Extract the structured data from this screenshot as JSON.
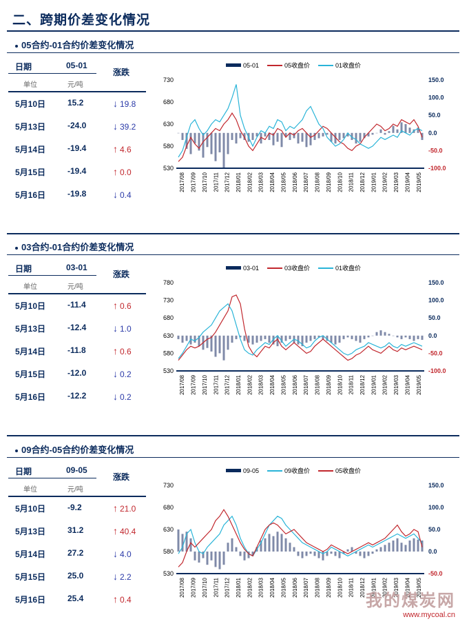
{
  "page_title": "二、跨期价差变化情况",
  "sections": [
    {
      "title": "05合约-01合约价差变化情况",
      "header": {
        "date": "日期",
        "spread": "05-01",
        "change": "涨跌",
        "unit_label": "单位",
        "unit": "元/吨"
      },
      "rows": [
        {
          "date": "5月10日",
          "value": "15.2",
          "dir": "down",
          "change": "19.8"
        },
        {
          "date": "5月13日",
          "value": "-24.0",
          "dir": "down",
          "change": "39.2"
        },
        {
          "date": "5月14日",
          "value": "-19.4",
          "dir": "up",
          "change": "4.6"
        },
        {
          "date": "5月15日",
          "value": "-19.4",
          "dir": "up",
          "change": "0.0"
        },
        {
          "date": "5月16日",
          "value": "-19.8",
          "dir": "down",
          "change": "0.4"
        }
      ]
    },
    {
      "title": "03合约-01合约价差变化情况",
      "header": {
        "date": "日期",
        "spread": "03-01",
        "change": "涨跌",
        "unit_label": "单位",
        "unit": "元/吨"
      },
      "rows": [
        {
          "date": "5月10日",
          "value": "-11.4",
          "dir": "up",
          "change": "0.6"
        },
        {
          "date": "5月13日",
          "value": "-12.4",
          "dir": "down",
          "change": "1.0"
        },
        {
          "date": "5月14日",
          "value": "-11.8",
          "dir": "up",
          "change": "0.6"
        },
        {
          "date": "5月15日",
          "value": "-12.0",
          "dir": "down",
          "change": "0.2"
        },
        {
          "date": "5月16日",
          "value": "-12.2",
          "dir": "down",
          "change": "0.2"
        }
      ]
    },
    {
      "title": "09合约-05合约价差变化情况",
      "header": {
        "date": "日期",
        "spread": "09-05",
        "change": "涨跌",
        "unit_label": "单位",
        "unit": "元/吨"
      },
      "rows": [
        {
          "date": "5月10日",
          "value": "-9.2",
          "dir": "up",
          "change": "21.0"
        },
        {
          "date": "5月13日",
          "value": "31.2",
          "dir": "up",
          "change": "40.4"
        },
        {
          "date": "5月14日",
          "value": "27.2",
          "dir": "down",
          "change": "4.0"
        },
        {
          "date": "5月15日",
          "value": "25.0",
          "dir": "down",
          "change": "2.2"
        },
        {
          "date": "5月16日",
          "value": "25.4",
          "dir": "up",
          "change": "0.4"
        }
      ]
    }
  ],
  "arrows": {
    "up": "↑",
    "down": "↓"
  },
  "colors": {
    "navy": "#0a2a5c",
    "red": "#c1272d",
    "cyan": "#29b4d8",
    "bar": "#7f8aa8",
    "down_text": "#2b3aa8"
  },
  "chart_data": [
    {
      "type": "bar+line",
      "legend": [
        "05-01",
        "05收盘价",
        "01收盘价"
      ],
      "x_ticks": [
        "2017/08",
        "2017/09",
        "2017/10",
        "2017/11",
        "2017/12",
        "2018/01",
        "2018/02",
        "2018/03",
        "2018/04",
        "2018/05",
        "2018/06",
        "2018/07",
        "2018/08",
        "2018/09",
        "2018/10",
        "2018/11",
        "2018/12",
        "2019/01",
        "2019/02",
        "2019/03",
        "2019/04",
        "2019/05"
      ],
      "left_ticks": [
        "730",
        "680",
        "630",
        "580",
        "530"
      ],
      "right_ticks": [
        "150.0",
        "100.0",
        "50.0",
        "0.0",
        "-50.0",
        "-100.0"
      ],
      "ylim_left": [
        530,
        730
      ],
      "ylim_right": [
        -100,
        150
      ],
      "series": [
        {
          "name": "05-01",
          "kind": "bar",
          "values": [
            0,
            -20,
            -45,
            -60,
            -30,
            -50,
            -70,
            -40,
            -60,
            -80,
            -55,
            -100,
            -60,
            -20,
            -30,
            -15,
            -20,
            -25,
            -20,
            -10,
            -30,
            -10,
            -20,
            -35,
            -25,
            -40,
            -10,
            -20,
            -15,
            -30,
            -25,
            -40,
            -35,
            -20,
            -15,
            -10,
            -5,
            -25,
            -30,
            -20,
            -15,
            -10,
            -20,
            -30,
            -25,
            -15,
            -10,
            -5,
            0,
            10,
            -5,
            5,
            20,
            10,
            30,
            25,
            15,
            10,
            15,
            -20
          ]
        },
        {
          "name": "05收盘价",
          "kind": "line",
          "values": [
            545,
            555,
            580,
            600,
            585,
            575,
            590,
            600,
            610,
            620,
            615,
            630,
            640,
            655,
            640,
            615,
            600,
            580,
            570,
            585,
            600,
            595,
            610,
            605,
            620,
            615,
            600,
            610,
            605,
            615,
            620,
            610,
            600,
            605,
            615,
            625,
            620,
            610,
            600,
            590,
            585,
            575,
            570,
            580,
            585,
            600,
            610,
            620,
            630,
            625,
            615,
            620,
            630,
            625,
            640,
            635,
            630,
            640,
            625,
            600
          ]
        },
        {
          "name": "01收盘价",
          "kind": "line",
          "values": [
            555,
            570,
            600,
            630,
            640,
            620,
            605,
            615,
            630,
            640,
            635,
            650,
            665,
            690,
            720,
            650,
            620,
            600,
            580,
            600,
            615,
            610,
            625,
            620,
            640,
            635,
            615,
            625,
            620,
            630,
            640,
            660,
            670,
            650,
            630,
            620,
            600,
            590,
            580,
            585,
            595,
            610,
            600,
            595,
            585,
            580,
            575,
            580,
            590,
            600,
            595,
            600,
            605,
            600,
            615,
            610,
            605,
            615,
            620,
            615
          ]
        }
      ]
    },
    {
      "type": "bar+line",
      "legend": [
        "03-01",
        "03收盘价",
        "01收盘价"
      ],
      "x_ticks": [
        "2017/08",
        "2017/09",
        "2017/10",
        "2017/11",
        "2017/12",
        "2018/01",
        "2018/02",
        "2018/03",
        "2018/04",
        "2018/05",
        "2018/06",
        "2018/07",
        "2018/08",
        "2018/09",
        "2018/10",
        "2018/11",
        "2018/12",
        "2019/01",
        "2019/02",
        "2019/03",
        "2019/04",
        "2019/05"
      ],
      "left_ticks": [
        "780",
        "730",
        "680",
        "630",
        "580",
        "530"
      ],
      "right_ticks": [
        "150.0",
        "100.0",
        "50.0",
        "0.0",
        "-50.0",
        "-100.0"
      ],
      "ylim_left": [
        530,
        780
      ],
      "ylim_right": [
        -100,
        150
      ],
      "series": [
        {
          "name": "03-01",
          "kind": "bar",
          "values": [
            -10,
            -20,
            -15,
            -25,
            -20,
            -30,
            -40,
            -35,
            -45,
            -60,
            -50,
            -70,
            -40,
            -20,
            -10,
            -5,
            -15,
            -20,
            -25,
            -20,
            -15,
            -10,
            -20,
            -25,
            -30,
            -20,
            -15,
            -10,
            -20,
            -25,
            -30,
            -20,
            -15,
            -10,
            -5,
            -10,
            -15,
            -20,
            -25,
            -20,
            -10,
            -5,
            -10,
            -15,
            -20,
            -10,
            -5,
            0,
            10,
            15,
            10,
            5,
            0,
            -5,
            -10,
            -5,
            -10,
            -15,
            -10,
            -12
          ]
        },
        {
          "name": "03收盘价",
          "kind": "line",
          "values": [
            560,
            575,
            590,
            600,
            595,
            600,
            610,
            620,
            625,
            640,
            660,
            680,
            700,
            740,
            745,
            720,
            650,
            600,
            580,
            570,
            585,
            600,
            595,
            610,
            620,
            600,
            590,
            600,
            610,
            600,
            590,
            580,
            585,
            600,
            610,
            620,
            610,
            600,
            590,
            580,
            570,
            560,
            565,
            575,
            580,
            590,
            600,
            590,
            585,
            580,
            590,
            600,
            590,
            585,
            595,
            590,
            595,
            600,
            595,
            590
          ]
        },
        {
          "name": "01收盘价",
          "kind": "line",
          "values": [
            565,
            580,
            600,
            620,
            615,
            625,
            640,
            650,
            660,
            680,
            700,
            710,
            720,
            700,
            660,
            620,
            590,
            580,
            575,
            590,
            600,
            610,
            605,
            620,
            630,
            615,
            600,
            610,
            620,
            615,
            605,
            595,
            600,
            615,
            625,
            630,
            620,
            610,
            600,
            590,
            580,
            575,
            580,
            590,
            595,
            600,
            610,
            605,
            600,
            595,
            600,
            610,
            600,
            595,
            605,
            600,
            605,
            610,
            605,
            600
          ]
        }
      ]
    },
    {
      "type": "bar+line",
      "legend": [
        "09-05",
        "09收盘价",
        "05收盘价"
      ],
      "x_ticks": [
        "2017/08",
        "2017/09",
        "2017/10",
        "2017/11",
        "2017/12",
        "2018/01",
        "2018/02",
        "2018/03",
        "2018/04",
        "2018/05",
        "2018/06",
        "2018/07",
        "2018/08",
        "2018/09",
        "2018/10",
        "2018/11",
        "2018/12",
        "2019/01",
        "2019/02",
        "2019/03",
        "2019/04",
        "2019/05"
      ],
      "left_ticks": [
        "730",
        "680",
        "630",
        "580",
        "530"
      ],
      "right_ticks": [
        "150.0",
        "100.0",
        "50.0",
        "0.0",
        "-50.0"
      ],
      "ylim_left": [
        530,
        730
      ],
      "ylim_right": [
        -50,
        150
      ],
      "series": [
        {
          "name": "09-05",
          "kind": "bar",
          "values": [
            50,
            40,
            45,
            30,
            -20,
            -25,
            -15,
            -30,
            -20,
            -35,
            -40,
            -30,
            20,
            30,
            10,
            -10,
            -20,
            -15,
            -10,
            10,
            25,
            30,
            40,
            35,
            45,
            40,
            30,
            20,
            10,
            -10,
            -15,
            -10,
            -5,
            -10,
            -15,
            -20,
            -10,
            -5,
            -10,
            -15,
            -5,
            5,
            10,
            -5,
            -10,
            -15,
            -10,
            -5,
            5,
            10,
            15,
            20,
            25,
            30,
            20,
            15,
            25,
            30,
            27,
            25
          ]
        },
        {
          "name": "09收盘价",
          "kind": "line",
          "values": [
            575,
            590,
            620,
            630,
            600,
            580,
            575,
            590,
            600,
            610,
            620,
            640,
            650,
            660,
            640,
            610,
            590,
            575,
            570,
            585,
            600,
            620,
            640,
            650,
            660,
            655,
            640,
            630,
            620,
            610,
            600,
            595,
            590,
            585,
            580,
            575,
            580,
            590,
            585,
            580,
            575,
            570,
            575,
            580,
            585,
            590,
            595,
            590,
            595,
            600,
            605,
            610,
            615,
            620,
            615,
            610,
            615,
            620,
            610,
            600
          ]
        },
        {
          "name": "05收盘价",
          "kind": "line",
          "values": [
            545,
            555,
            580,
            600,
            590,
            600,
            610,
            620,
            630,
            650,
            660,
            675,
            660,
            640,
            620,
            600,
            585,
            575,
            570,
            590,
            610,
            630,
            640,
            645,
            640,
            630,
            620,
            625,
            630,
            620,
            610,
            600,
            595,
            590,
            585,
            580,
            585,
            595,
            590,
            585,
            580,
            575,
            580,
            585,
            590,
            595,
            600,
            595,
            600,
            605,
            610,
            620,
            630,
            640,
            625,
            615,
            620,
            630,
            625,
            590
          ]
        }
      ]
    }
  ],
  "watermark": {
    "brand": "我的煤炭网",
    "url": "www.mycoal.cn"
  }
}
